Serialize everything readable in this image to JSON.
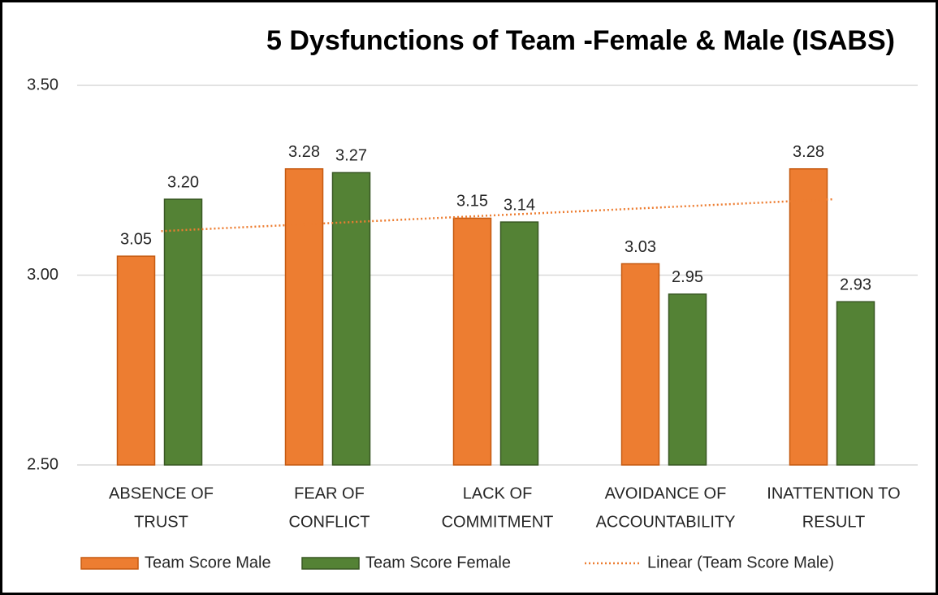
{
  "chart_data": {
    "type": "bar",
    "title": "5 Dysfunctions of Team -Female & Male (ISABS)",
    "categories": [
      [
        "ABSENCE OF",
        "TRUST"
      ],
      [
        "FEAR OF",
        "CONFLICT"
      ],
      [
        "LACK OF",
        "COMMITMENT"
      ],
      [
        "AVOIDANCE OF",
        "ACCOUNTABILITY"
      ],
      [
        "INATTENTION TO",
        "RESULT"
      ]
    ],
    "series": [
      {
        "name": "Team Score Male",
        "color": "#ed7d31",
        "values": [
          3.05,
          3.28,
          3.15,
          3.03,
          3.28
        ],
        "value_labels": [
          "3.05",
          "3.28",
          "3.15",
          "3.03",
          "3.28"
        ]
      },
      {
        "name": "Team Score Female",
        "color": "#548235",
        "values": [
          3.2,
          3.27,
          3.14,
          2.95,
          2.93
        ],
        "value_labels": [
          "3.20",
          "3.27",
          "3.14",
          "2.95",
          "2.93"
        ]
      }
    ],
    "trendline": {
      "name": "Linear (Team Score Male)",
      "series": 0,
      "color": "#ed7d31"
    },
    "ylim": [
      2.5,
      3.5
    ],
    "yticks": [
      {
        "value": 2.5,
        "label": "2.50"
      },
      {
        "value": 3.0,
        "label": "3.00"
      },
      {
        "value": 3.5,
        "label": "3.50"
      }
    ],
    "grid": true
  }
}
